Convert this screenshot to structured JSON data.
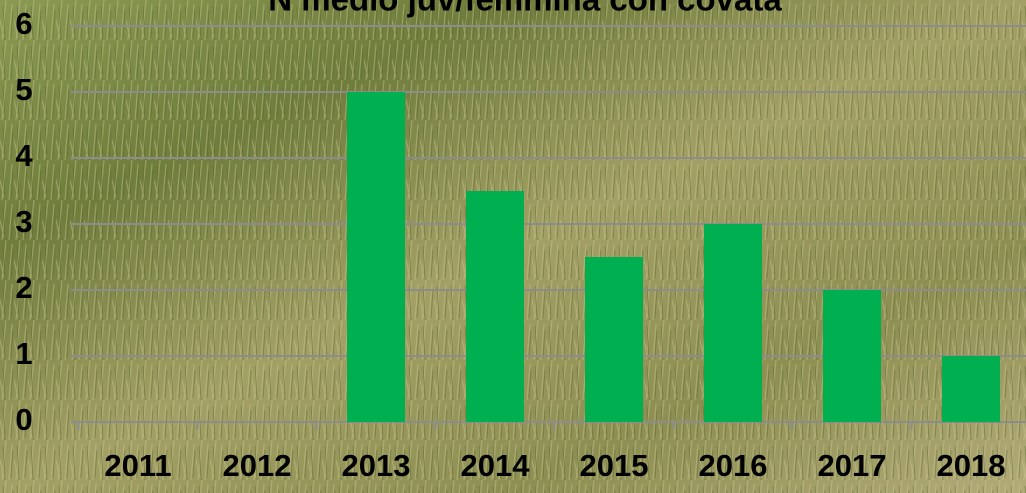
{
  "chart_data": {
    "type": "bar",
    "title": "N medio juv/femmina con covata",
    "categories": [
      "2011",
      "2012",
      "2013",
      "2014",
      "2015",
      "2016",
      "2017",
      "2018"
    ],
    "values": [
      0,
      0,
      5,
      3.5,
      2.5,
      3,
      2,
      1
    ],
    "color": "#00b050",
    "ylim": [
      0,
      6
    ],
    "yticks": [
      0,
      1,
      2,
      3,
      4,
      5,
      6
    ],
    "grid": true
  }
}
